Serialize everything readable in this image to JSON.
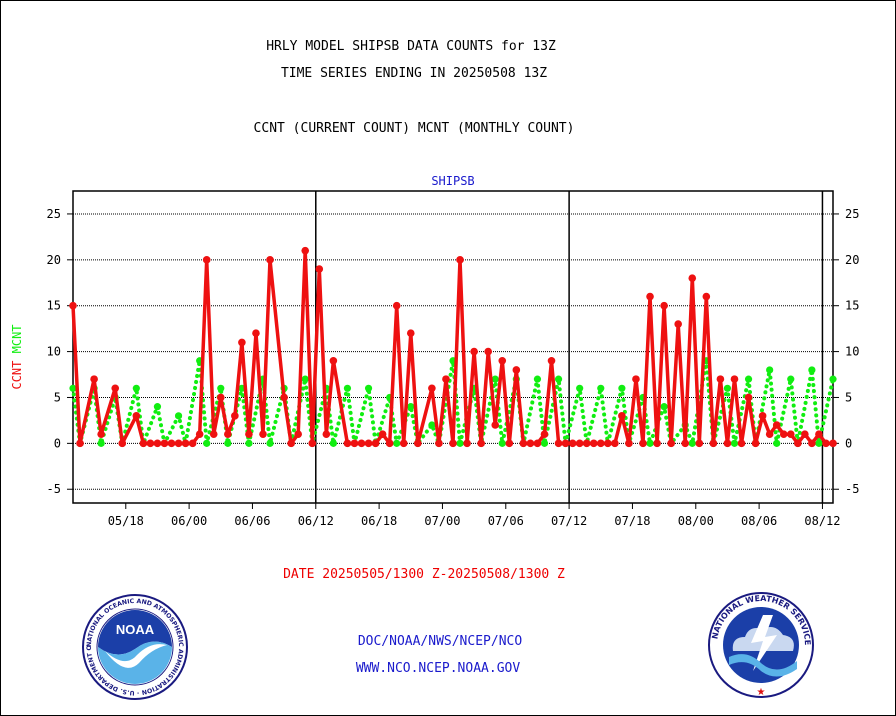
{
  "header": {
    "title_line1": "HRLY MODEL SHIPSB DATA COUNTS for 13Z",
    "title_line2": "TIME SERIES ENDING IN 20250508 13Z",
    "title_line3": "CCNT (CURRENT COUNT) MCNT (MONTHLY COUNT)"
  },
  "footer": {
    "date_range": "DATE 20250505/1300 Z-20250508/1300 Z",
    "org_line": "DOC/NOAA/NWS/NCEP/NCO",
    "url_line": "WWW.NCO.NCEP.NOAA.GOV"
  },
  "logos": {
    "left": "noaa-logo",
    "left_text": "NOAA",
    "left_ring_text": "NATIONAL OCEANIC AND ATMOSPHERIC ADMINISTRATION · U.S. DEPARTMENT OF COMMERCE",
    "right": "national-weather-service-logo",
    "right_ring_text": "NATIONAL WEATHER SERVICE"
  },
  "colors": {
    "ccnt": "#ee1111",
    "mcnt": "#11ee11",
    "axis_title": "#1a1acc",
    "date_text": "#ee0000"
  },
  "chart_data": {
    "type": "line",
    "title": "SHIPSB",
    "ylabel_parts": [
      {
        "text": "CCNT",
        "color": "#ee1111"
      },
      {
        "text": "MCNT",
        "color": "#11ee11"
      }
    ],
    "ylim": [
      -6.5,
      27.5
    ],
    "yticks": [
      -5,
      0,
      5,
      10,
      15,
      20,
      25
    ],
    "xlim": [
      0,
      108
    ],
    "xtick_labels": [
      {
        "x": 7.5,
        "label": "05/18"
      },
      {
        "x": 16.5,
        "label": "06/00"
      },
      {
        "x": 25.5,
        "label": "06/06"
      },
      {
        "x": 34.5,
        "label": "06/12"
      },
      {
        "x": 43.5,
        "label": "06/18"
      },
      {
        "x": 52.5,
        "label": "07/00"
      },
      {
        "x": 61.5,
        "label": "07/06"
      },
      {
        "x": 70.5,
        "label": "07/12"
      },
      {
        "x": 79.5,
        "label": "07/18"
      },
      {
        "x": 88.5,
        "label": "08/00"
      },
      {
        "x": 97.5,
        "label": "08/06"
      },
      {
        "x": 106.5,
        "label": "08/12"
      }
    ],
    "day_separators": [
      34.5,
      70.5,
      106.5
    ],
    "grid": "horizontal",
    "series": [
      {
        "name": "CCNT",
        "style": "solid",
        "x": [
          0,
          1,
          3,
          4,
          6,
          7,
          9,
          10,
          11,
          12,
          13,
          14,
          15,
          16,
          17,
          18,
          19,
          20,
          21,
          22,
          23,
          24,
          25,
          26,
          27,
          28,
          30,
          31,
          32,
          33,
          34,
          35,
          36,
          37,
          39,
          40,
          41,
          42,
          43,
          44,
          45,
          46,
          47,
          48,
          49,
          51,
          52,
          53,
          54,
          55,
          56,
          57,
          58,
          59,
          60,
          61,
          62,
          63,
          64,
          65,
          66,
          67,
          68,
          69,
          70,
          71,
          72,
          73,
          74,
          75,
          76,
          77,
          78,
          79,
          80,
          81,
          82,
          83,
          84,
          85,
          86,
          87,
          88,
          89,
          90,
          91,
          92,
          93,
          94,
          95,
          96,
          97,
          98,
          99,
          100,
          101,
          102,
          103,
          104,
          105,
          106,
          107,
          108
        ],
        "values": [
          15,
          0,
          7,
          1,
          6,
          0,
          3,
          0,
          0,
          0,
          0,
          0,
          0,
          0,
          0,
          1,
          20,
          1,
          5,
          1,
          3,
          11,
          1,
          12,
          1,
          20,
          5,
          0,
          1,
          21,
          0,
          19,
          1,
          9,
          0,
          0,
          0,
          0,
          0,
          1,
          0,
          15,
          0,
          12,
          0,
          6,
          0,
          7,
          0,
          20,
          0,
          10,
          0,
          10,
          2,
          9,
          0,
          8,
          0,
          0,
          0,
          1,
          9,
          0,
          0,
          0,
          0,
          0,
          0,
          0,
          0,
          0,
          3,
          0,
          7,
          0,
          16,
          0,
          15,
          0,
          13,
          0,
          18,
          0,
          16,
          0,
          7,
          0,
          7,
          0,
          5,
          0,
          3,
          1,
          2,
          1,
          1,
          0,
          1,
          0,
          1,
          0,
          0
        ],
        "points_until": 108
      },
      {
        "name": "MCNT",
        "style": "dotted",
        "x": [
          0,
          1,
          3,
          4,
          6,
          7,
          9,
          10,
          12,
          13,
          15,
          16,
          18,
          19,
          21,
          22,
          24,
          25,
          27,
          28,
          30,
          31,
          33,
          34,
          36,
          37,
          39,
          40,
          42,
          43,
          45,
          46,
          48,
          49,
          51,
          52,
          54,
          55,
          57,
          58,
          60,
          61,
          63,
          64,
          66,
          67,
          69,
          70,
          72,
          73,
          75,
          76,
          78,
          79,
          81,
          82,
          84,
          85,
          87,
          88,
          90,
          91,
          93,
          94,
          96,
          97,
          99,
          100,
          102,
          103,
          105,
          106,
          108
        ],
        "values": [
          6,
          0,
          6,
          0,
          5,
          0,
          6,
          0,
          4,
          0,
          3,
          0,
          9,
          0,
          6,
          0,
          6,
          0,
          7,
          0,
          6,
          0,
          7,
          0,
          6,
          0,
          6,
          0,
          6,
          0,
          5,
          0,
          4,
          0,
          2,
          0,
          9,
          0,
          6,
          0,
          7,
          0,
          7,
          0,
          7,
          0,
          7,
          0,
          6,
          0,
          6,
          0,
          6,
          0,
          5,
          0,
          4,
          0,
          2,
          0,
          9,
          0,
          6,
          0,
          7,
          0,
          8,
          0,
          7,
          0,
          8,
          0,
          7
        ]
      }
    ]
  }
}
